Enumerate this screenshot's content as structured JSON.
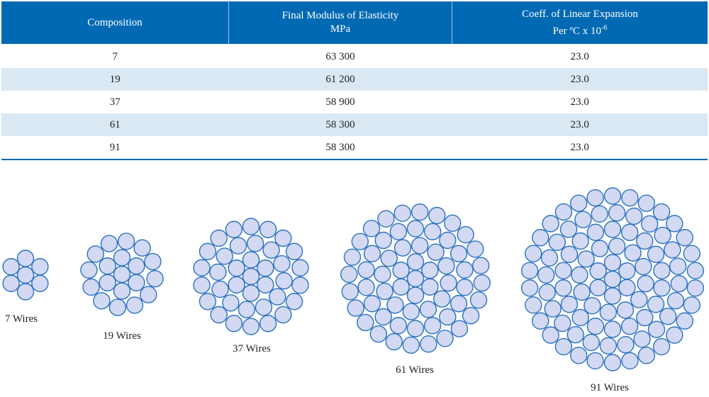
{
  "table": {
    "headers": [
      "Composition",
      "Final Modulus of Elasticity",
      "MPa",
      "Coeff. of Linear Expansion",
      "Per ºC x 10",
      "-6"
    ],
    "rows": [
      [
        "7",
        "63 300",
        "23.0"
      ],
      [
        "19",
        "61 200",
        "23.0"
      ],
      [
        "37",
        "58 900",
        "23.0"
      ],
      [
        "61",
        "58 300",
        "23.0"
      ],
      [
        "91",
        "58 300",
        "23.0"
      ]
    ]
  },
  "diagrams": [
    {
      "label": "7 Wires",
      "wires": 7
    },
    {
      "label": "19 Wires",
      "wires": 19
    },
    {
      "label": "37 Wires",
      "wires": 37
    },
    {
      "label": "61 Wires",
      "wires": 61
    },
    {
      "label": "91 Wires",
      "wires": 91
    }
  ],
  "colors": {
    "header": "#0069b4",
    "alt_row": "#dae8f3",
    "wire_fill": "#d3d9f2",
    "wire_stroke": "#2a72c0"
  }
}
